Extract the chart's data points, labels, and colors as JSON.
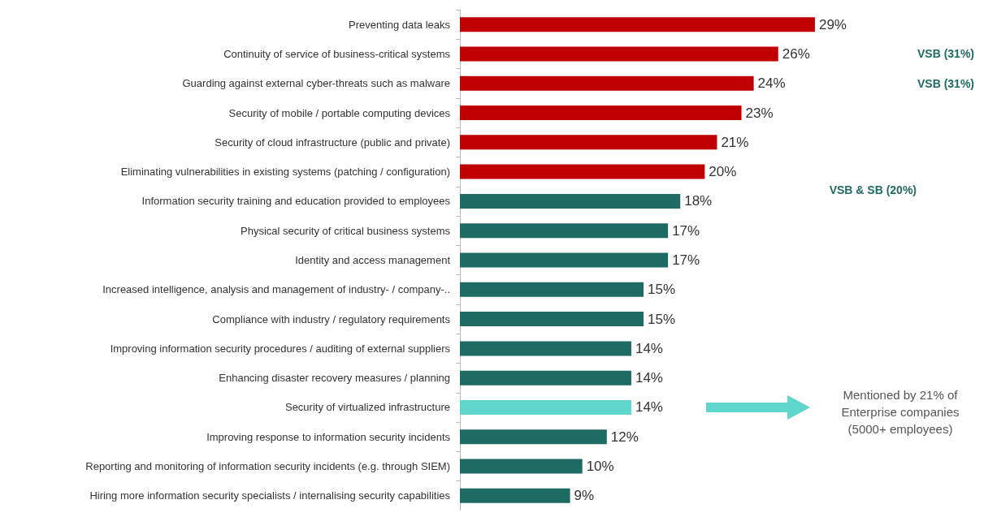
{
  "chart_data": {
    "type": "bar",
    "orientation": "horizontal",
    "categories": [
      "Preventing data leaks",
      "Continuity of service of business-critical systems",
      "Guarding against external cyber-threats such as malware",
      "Security of mobile / portable computing devices",
      "Security of cloud infrastructure (public and private)",
      "Eliminating vulnerabilities in existing systems (patching / configuration)",
      "Information security training and education provided to employees",
      "Physical security of critical business systems",
      "Identity and access management",
      "Increased intelligence, analysis and management of industry- / company-..",
      "Compliance with industry / regulatory requirements",
      "Improving information security procedures / auditing of external suppliers",
      "Enhancing disaster recovery measures / planning",
      "Security of virtualized infrastructure",
      "Improving response to information security incidents",
      "Reporting and monitoring of information security incidents (e.g. through SIEM)",
      "Hiring more information security specialists / internalising security capabilities"
    ],
    "values": [
      29,
      26,
      24,
      23,
      21,
      20,
      18,
      17,
      17,
      15,
      15,
      14,
      14,
      14,
      12,
      10,
      9
    ],
    "value_labels": [
      "29%",
      "26%",
      "24%",
      "23%",
      "21%",
      "20%",
      "18%",
      "17%",
      "17%",
      "15%",
      "15%",
      "14%",
      "14%",
      "14%",
      "12%",
      "10%",
      "9%"
    ],
    "colors": [
      "#c00000",
      "#c00000",
      "#c00000",
      "#c00000",
      "#c00000",
      "#c00000",
      "#1e6b64",
      "#1e6b64",
      "#1e6b64",
      "#1e6b64",
      "#1e6b64",
      "#1e6b64",
      "#1e6b64",
      "#5fd6cc",
      "#1e6b64",
      "#1e6b64",
      "#1e6b64"
    ],
    "annotations": [
      "VSB (31%)",
      "VSB (31%)",
      "VSB & SB (20%)",
      "Mentioned by 21% of\nEnterprise companies\n(5000+ employees)"
    ]
  }
}
